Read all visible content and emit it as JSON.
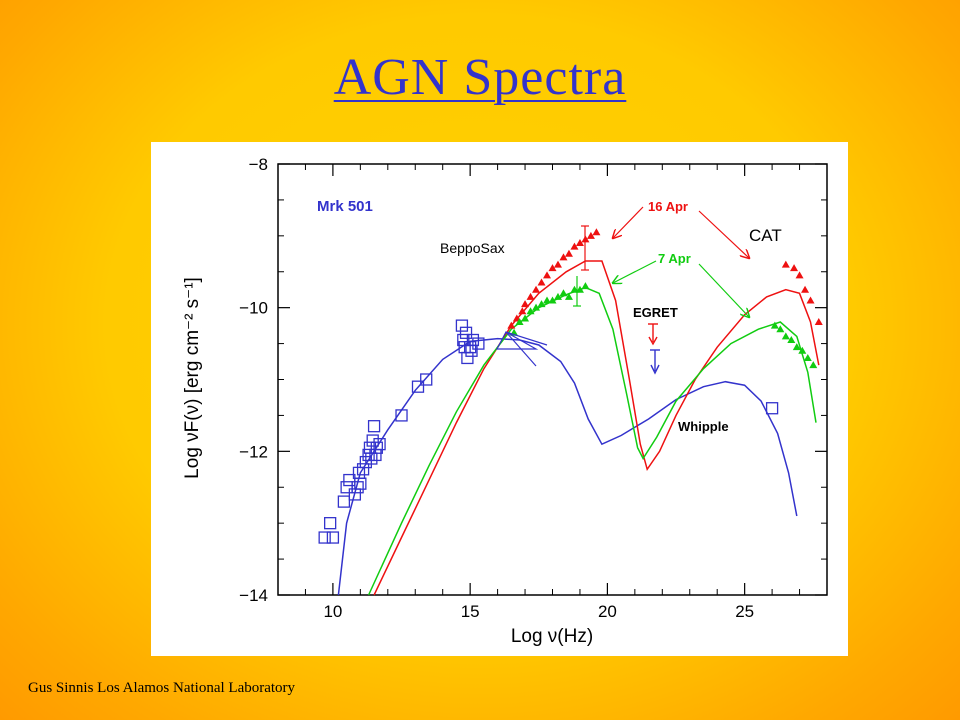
{
  "slide": {
    "title": "AGN Spectra",
    "footer": "Gus Sinnis Los Alamos National Laboratory"
  },
  "colors": {
    "background": "#ffcc00",
    "title": "#3333cc",
    "synchrotron_low": "#3333cc",
    "flare_16apr": "#ee1111",
    "flare_7apr": "#11cc11",
    "annotation_black": "#000000"
  },
  "chart_data": {
    "type": "scatter",
    "title": "Mrk 501",
    "xlabel": "Log ν(Hz)",
    "ylabel": "Log νF(ν) [erg cm⁻² s⁻¹]",
    "xlim": [
      8,
      28
    ],
    "ylim": [
      -14,
      -8
    ],
    "x_ticks": [
      10,
      15,
      20,
      25
    ],
    "y_ticks": [
      -14,
      -12,
      -10,
      -8
    ],
    "grid": false,
    "annotations": {
      "beppo": "BeppoSax",
      "apr16": "16 Apr",
      "apr7": "7 Apr",
      "cat": "CAT",
      "egret": "EGRET",
      "whipple": "Whipple"
    },
    "series": [
      {
        "color": "#3333cc",
        "marker": "square",
        "points": [
          [
            9.7,
            -13.2
          ],
          [
            9.9,
            -13.0
          ],
          [
            10.0,
            -13.2
          ],
          [
            10.4,
            -12.7
          ],
          [
            10.5,
            -12.5
          ],
          [
            10.6,
            -12.4
          ],
          [
            10.8,
            -12.6
          ],
          [
            10.9,
            -12.5
          ],
          [
            10.95,
            -12.3
          ],
          [
            11.0,
            -12.45
          ],
          [
            11.1,
            -12.25
          ],
          [
            11.2,
            -12.15
          ],
          [
            11.3,
            -12.05
          ],
          [
            11.35,
            -11.95
          ],
          [
            11.4,
            -12.1
          ],
          [
            11.45,
            -11.85
          ],
          [
            11.5,
            -11.65
          ],
          [
            11.55,
            -12.05
          ],
          [
            11.6,
            -11.95
          ],
          [
            11.7,
            -11.9
          ],
          [
            12.5,
            -11.5
          ],
          [
            13.1,
            -11.1
          ],
          [
            13.4,
            -11.0
          ],
          [
            14.7,
            -10.25
          ],
          [
            14.75,
            -10.45
          ],
          [
            14.8,
            -10.55
          ],
          [
            14.85,
            -10.35
          ],
          [
            14.9,
            -10.7
          ],
          [
            15.0,
            -10.55
          ],
          [
            15.1,
            -10.45
          ],
          [
            15.3,
            -10.5
          ],
          [
            15.05,
            -10.6
          ],
          [
            26.0,
            -11.4
          ]
        ]
      },
      {
        "color": "#3333cc",
        "marker": "curve",
        "points": [
          [
            10.2,
            -14
          ],
          [
            10.5,
            -13.0
          ],
          [
            11,
            -12.3
          ],
          [
            12,
            -11.7
          ],
          [
            13,
            -11.15
          ],
          [
            14,
            -10.72
          ],
          [
            15,
            -10.47
          ],
          [
            16,
            -10.43
          ],
          [
            16.8,
            -10.45
          ],
          [
            17.5,
            -10.52
          ],
          [
            18.3,
            -10.75
          ],
          [
            18.8,
            -11.05
          ],
          [
            19.3,
            -11.55
          ],
          [
            19.8,
            -11.9
          ],
          [
            20.5,
            -11.78
          ],
          [
            21.5,
            -11.55
          ],
          [
            22.5,
            -11.28
          ],
          [
            23.5,
            -11.1
          ],
          [
            24.3,
            -11.03
          ],
          [
            25.0,
            -11.08
          ],
          [
            25.6,
            -11.3
          ],
          [
            26.2,
            -11.75
          ],
          [
            26.6,
            -12.3
          ],
          [
            26.9,
            -12.9
          ]
        ]
      },
      {
        "color": "#ee1111",
        "marker": "curve",
        "points": [
          [
            11.5,
            -14
          ],
          [
            12.5,
            -13.2
          ],
          [
            13.5,
            -12.4
          ],
          [
            14.5,
            -11.6
          ],
          [
            15.5,
            -10.85
          ],
          [
            16.5,
            -10.25
          ],
          [
            17.5,
            -9.8
          ],
          [
            18.5,
            -9.5
          ],
          [
            19.2,
            -9.35
          ],
          [
            19.8,
            -9.35
          ],
          [
            20.3,
            -9.9
          ],
          [
            20.8,
            -11.0
          ],
          [
            21.2,
            -11.9
          ],
          [
            21.45,
            -12.25
          ],
          [
            21.9,
            -12.0
          ],
          [
            22.5,
            -11.5
          ],
          [
            23.2,
            -11.0
          ],
          [
            24.0,
            -10.55
          ],
          [
            25.0,
            -10.1
          ],
          [
            25.8,
            -9.85
          ],
          [
            26.5,
            -9.75
          ],
          [
            27.0,
            -9.8
          ],
          [
            27.4,
            -10.2
          ],
          [
            27.7,
            -10.8
          ]
        ]
      },
      {
        "color": "#11cc11",
        "marker": "curve",
        "points": [
          [
            11.3,
            -14
          ],
          [
            12.5,
            -13.0
          ],
          [
            13.5,
            -12.2
          ],
          [
            14.5,
            -11.45
          ],
          [
            15.5,
            -10.8
          ],
          [
            16.5,
            -10.3
          ],
          [
            17.5,
            -10.0
          ],
          [
            18.5,
            -9.82
          ],
          [
            19.2,
            -9.72
          ],
          [
            19.7,
            -9.8
          ],
          [
            20.2,
            -10.3
          ],
          [
            20.7,
            -11.2
          ],
          [
            21.1,
            -11.95
          ],
          [
            21.3,
            -12.1
          ],
          [
            21.8,
            -11.8
          ],
          [
            22.5,
            -11.3
          ],
          [
            23.5,
            -10.85
          ],
          [
            24.5,
            -10.5
          ],
          [
            25.5,
            -10.3
          ],
          [
            26.3,
            -10.2
          ],
          [
            26.9,
            -10.4
          ],
          [
            27.3,
            -10.9
          ],
          [
            27.6,
            -11.6
          ]
        ]
      },
      {
        "color": "#ee1111",
        "marker": "triangle",
        "points": [
          [
            16.5,
            -10.25
          ],
          [
            16.7,
            -10.15
          ],
          [
            16.9,
            -10.05
          ],
          [
            17.0,
            -9.95
          ],
          [
            17.2,
            -9.85
          ],
          [
            17.4,
            -9.75
          ],
          [
            17.6,
            -9.65
          ],
          [
            17.8,
            -9.55
          ],
          [
            18.0,
            -9.45
          ],
          [
            18.2,
            -9.4
          ],
          [
            18.4,
            -9.3
          ],
          [
            18.6,
            -9.25
          ],
          [
            18.8,
            -9.15
          ],
          [
            19.0,
            -9.1
          ],
          [
            19.2,
            -9.05
          ],
          [
            19.4,
            -9.0
          ],
          [
            19.6,
            -8.95
          ],
          [
            26.5,
            -9.4
          ],
          [
            26.8,
            -9.45
          ],
          [
            27.0,
            -9.55
          ],
          [
            27.2,
            -9.75
          ],
          [
            27.4,
            -9.9
          ],
          [
            27.7,
            -10.2
          ]
        ]
      },
      {
        "color": "#11cc11",
        "marker": "triangle",
        "points": [
          [
            16.6,
            -10.35
          ],
          [
            16.8,
            -10.2
          ],
          [
            17.0,
            -10.15
          ],
          [
            17.2,
            -10.05
          ],
          [
            17.4,
            -10.0
          ],
          [
            17.6,
            -9.95
          ],
          [
            17.8,
            -9.9
          ],
          [
            18.0,
            -9.9
          ],
          [
            18.2,
            -9.85
          ],
          [
            18.4,
            -9.8
          ],
          [
            18.6,
            -9.85
          ],
          [
            18.8,
            -9.75
          ],
          [
            19.0,
            -9.75
          ],
          [
            19.2,
            -9.7
          ],
          [
            26.1,
            -10.25
          ],
          [
            26.3,
            -10.3
          ],
          [
            26.5,
            -10.4
          ],
          [
            26.7,
            -10.45
          ],
          [
            26.9,
            -10.55
          ],
          [
            27.1,
            -10.6
          ],
          [
            27.3,
            -10.7
          ],
          [
            27.5,
            -10.8
          ]
        ]
      }
    ]
  }
}
